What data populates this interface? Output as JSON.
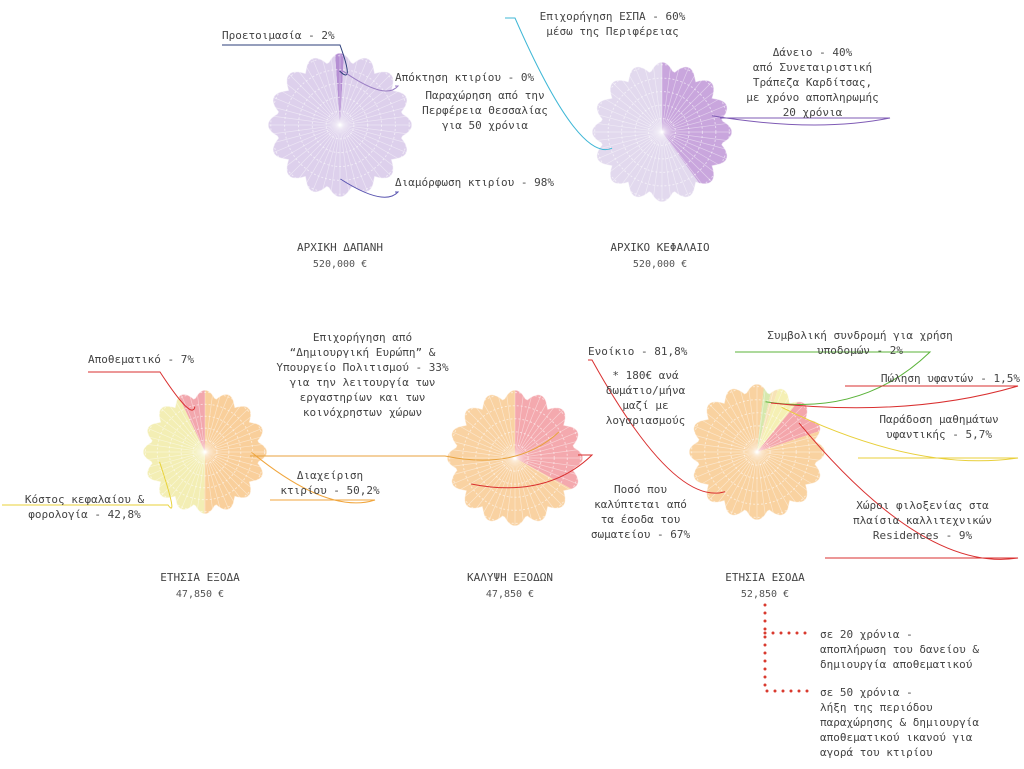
{
  "chart_data": [
    {
      "type": "pie",
      "title": "ΑΡΧΙΚΗ ΔΑΠΑΝΗ",
      "subtitle": "520,000 €",
      "categories": [
        "Προετοιμασία - 2%",
        "Απόκτηση κτιρίου - 0%",
        "Διαμόρφωση κτιρίου - 98%"
      ],
      "values": [
        2,
        0,
        98
      ],
      "colors": [
        "#b58fd3",
        "#cdb6e3",
        "#ddd0ec"
      ],
      "annotation": "Παραχώρηση από  την\nΠερφέρεια Θεσσαλίας\nγια 50 χρόνια"
    },
    {
      "type": "pie",
      "title": "ΑΡΧΙΚΟ ΚΕΦΑΛΑΙΟ",
      "subtitle": "520,000 €",
      "categories": [
        "Επιχορήγηση ΕΣΠΑ - 60%\nμέσω της Περιφέρειας",
        "Δάνειο - 40%\nαπό  Συνεταιριστική\nΤράπεζα Καρδίτσας,\nμε χρόνο αποπληρωμής\n20 χρόνια"
      ],
      "values": [
        60,
        40
      ],
      "colors": [
        "#e2d9ee",
        "#c9a6dd"
      ]
    },
    {
      "type": "pie",
      "title": "ΕΤΗΣΙΑ ΕΞΟΔΑ",
      "subtitle": "47,850 €",
      "categories": [
        "Διαχείριση\nκτιρίου - 50,2%",
        "Κόστος κεφαλαίου &\nφορολογία - 42,8%",
        "Αποθεματικό - 7%"
      ],
      "values": [
        50.2,
        42.8,
        7
      ],
      "colors": [
        "#f9cf9b",
        "#f3eeb4",
        "#f2a7ad"
      ]
    },
    {
      "type": "pie",
      "title": "ΚΑΛΥΨΗ ΕΞΟΔΩΝ",
      "subtitle": "47,850 €",
      "categories": [
        "Επιχορήγηση από\n“Δημιουργική Ευρώπη” &\nΥπουργείο Πολιτισμού - 33%\nγια την λειτουργία των\nεργαστηρίων και των\nκοινόχρηστων χώρων",
        "Ποσό που\nκαλύπτεται από\nτα έσοδα του\nσωματείου - 67%"
      ],
      "values": [
        33,
        67
      ],
      "colors": [
        "#f4a9ae",
        "#f9d2a2"
      ]
    },
    {
      "type": "pie",
      "title": "ΕΤΗΣΙΑ ΕΣΟΔΑ",
      "subtitle": "52,850 €",
      "categories": [
        "Συμβολική συνδρομή για χρήση\nυποδομών - 2%",
        "Πώληση υφαντών - 1,5%",
        "Παράδοση μαθημάτων\nυφαντικής - 5,7%",
        "Χώροι φιλοξενίας στα\nπλαίσια καλλιτεχνικών\nResidences - 9%",
        "Ενοίκιο - 81,8%"
      ],
      "values": [
        2,
        1.5,
        5.7,
        9,
        81.8
      ],
      "colors": [
        "#d6e8ad",
        "#f7e3b6",
        "#f5f0b4",
        "#f4a6ab",
        "#f9d2a0"
      ],
      "annotation": "* 180€ ανά\nδωμάτιο/μήνα\nμαζί με\nλογαριασμούς"
    }
  ],
  "notes": [
    "σε 20 χρόνια -\nαποπλήρωση του δανείου &\nδημιουργία αποθεματικού",
    "σε 50 χρόνια -\nλήξη της περιόδου\nπαραχώρησης & δημιουργία\nαποθεματικού ικανού για\nαγορά του κτιρίου"
  ]
}
